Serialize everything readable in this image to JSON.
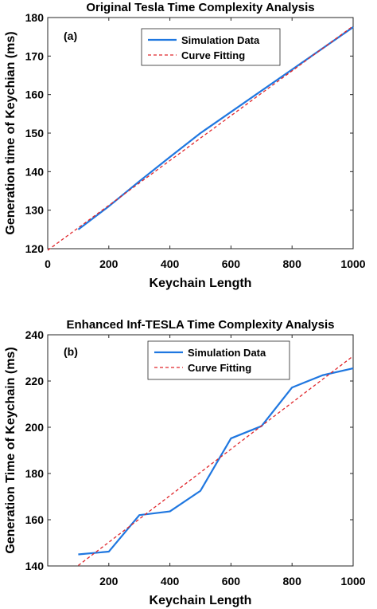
{
  "chart_data": [
    {
      "type": "line",
      "title": "Original Tesla Time Complexity Analysis",
      "panel_label": "(a)",
      "xlabel": "Keychain Length",
      "ylabel": "Generation time of Keychian (ms)",
      "xlim": [
        0,
        1000
      ],
      "ylim": [
        120,
        180
      ],
      "xticks": [
        0,
        200,
        400,
        600,
        800,
        1000
      ],
      "yticks": [
        120,
        130,
        140,
        150,
        160,
        170,
        180
      ],
      "grid": false,
      "legend_position": "top-right",
      "series": [
        {
          "name": "Simulation Data",
          "style": "solid",
          "color": "#1f77e0",
          "x": [
            100,
            200,
            300,
            400,
            500,
            600,
            700,
            800,
            900,
            1000
          ],
          "y": [
            125,
            131,
            137.5,
            143.8,
            150,
            155.5,
            161,
            166.5,
            172,
            177.5
          ]
        },
        {
          "name": "Curve Fitting",
          "style": "dashed",
          "color": "#e0262b",
          "x": [
            0,
            1000
          ],
          "y": [
            119.6,
            177.8
          ]
        }
      ]
    },
    {
      "type": "line",
      "title": "Enhanced Inf-TESLA Time Complexity Analysis",
      "panel_label": "(b)",
      "xlabel": "Keychain Length",
      "ylabel": "Generation Time of Keychain (ms)",
      "xlim": [
        0,
        1000
      ],
      "ylim": [
        140,
        240
      ],
      "xticks": [
        200,
        400,
        600,
        800,
        1000
      ],
      "yticks": [
        140,
        160,
        180,
        200,
        220,
        240
      ],
      "grid": false,
      "legend_position": "top-center",
      "series": [
        {
          "name": "Simulation Data",
          "style": "solid",
          "color": "#1f77e0",
          "x": [
            100,
            200,
            300,
            400,
            500,
            600,
            700,
            800,
            900,
            1000
          ],
          "y": [
            145,
            146.2,
            162,
            163.6,
            172.5,
            195.2,
            200.5,
            217.2,
            222.5,
            225.5
          ]
        },
        {
          "name": "Curve Fitting",
          "style": "dashed",
          "color": "#e0262b",
          "x": [
            100,
            1000
          ],
          "y": [
            140.2,
            230.8
          ]
        }
      ]
    }
  ]
}
